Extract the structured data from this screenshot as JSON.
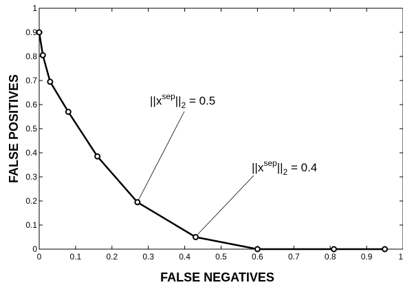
{
  "chart_data": {
    "type": "line",
    "title": "",
    "xlabel": "FALSE NEGATIVES",
    "ylabel": "FALSE POSITIVES",
    "xlim": [
      0,
      1
    ],
    "ylim": [
      0,
      1
    ],
    "grid": false,
    "x_ticks": [
      "0",
      "0.1",
      "0.2",
      "0.3",
      "0.4",
      "0.5",
      "0.6",
      "0.7",
      "0.8",
      "0.9",
      "1"
    ],
    "y_ticks": [
      "0",
      "0.1",
      "0.2",
      "0.3",
      "0.4",
      "0.5",
      "0.6",
      "0.7",
      "0.8",
      "0.9",
      "1"
    ],
    "series": [
      {
        "x": [
          0.0,
          0.01,
          0.03,
          0.08,
          0.16,
          0.27,
          0.43,
          0.6,
          0.81,
          0.95
        ],
        "y": [
          0.9,
          0.805,
          0.695,
          0.57,
          0.385,
          0.195,
          0.05,
          0.0,
          0.0,
          0.0
        ],
        "marker": "circle",
        "color": "#000000"
      }
    ],
    "annotations": [
      {
        "base": "||x",
        "sup": "sep",
        "close": "||",
        "sub": "2",
        "eq": " = 0.5",
        "target_x": 0.27,
        "target_y": 0.195
      },
      {
        "base": "||x",
        "sup": "sep",
        "close": "||",
        "sub": "2",
        "eq": " = 0.4",
        "target_x": 0.43,
        "target_y": 0.05
      }
    ]
  }
}
